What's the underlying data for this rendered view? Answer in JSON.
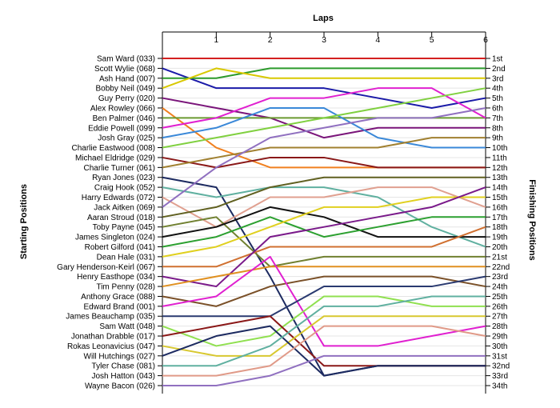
{
  "chart_data": {
    "type": "line",
    "title": "Laps",
    "xlabel": "Laps",
    "ylabel_left": "Starting Positions",
    "ylabel_right": "Finishing Positions",
    "x": [
      0,
      1,
      2,
      3,
      4,
      5,
      6
    ],
    "x_tick_labels": [
      "1",
      "2",
      "3",
      "4",
      "5",
      "6"
    ],
    "ylim": [
      1,
      34
    ],
    "y_inverted": true,
    "grid": "horizontal",
    "finish_labels": [
      "1st",
      "2nd",
      "3rd",
      "4th",
      "5th",
      "6th",
      "7th",
      "8th",
      "9th",
      "10th",
      "11th",
      "12th",
      "13th",
      "14th",
      "15th",
      "16th",
      "17th",
      "18th",
      "19th",
      "20th",
      "21st",
      "22nd",
      "23rd",
      "24th",
      "25th",
      "26th",
      "27th",
      "28th",
      "29th",
      "30th",
      "31st",
      "32nd",
      "33rd",
      "34th"
    ],
    "series": [
      {
        "name": "Sam Ward (033)",
        "color": "#d42020",
        "values": [
          1,
          1,
          1,
          1,
          1,
          1,
          1
        ]
      },
      {
        "name": "Scott Wylie (068)",
        "color": "#1a1aa8",
        "values": [
          2,
          4,
          4,
          4,
          5,
          6,
          5
        ]
      },
      {
        "name": "Ash Hand (007)",
        "color": "#2c9a2c",
        "values": [
          3,
          3,
          2,
          2,
          2,
          2,
          2
        ]
      },
      {
        "name": "Bobby Neil (049)",
        "color": "#d8c800",
        "values": [
          4,
          2,
          3,
          3,
          3,
          3,
          3
        ]
      },
      {
        "name": "Guy Perry (020)",
        "color": "#7a157a",
        "values": [
          5,
          6,
          7,
          9,
          8,
          8,
          8
        ]
      },
      {
        "name": "Alex Rowley (066)",
        "color": "#f08020",
        "values": [
          6,
          10,
          12,
          12,
          12,
          12,
          12
        ]
      },
      {
        "name": "Ben Palmer (046)",
        "color": "#6a9a30",
        "values": [
          7,
          7,
          7,
          7,
          7,
          7,
          7
        ]
      },
      {
        "name": "Eddie Powell (099)",
        "color": "#e020d0",
        "values": [
          8,
          7,
          5,
          5,
          4,
          4,
          7
        ]
      },
      {
        "name": "Josh Gray (025)",
        "color": "#3a88d8",
        "values": [
          9,
          8,
          6,
          6,
          9,
          10,
          10
        ]
      },
      {
        "name": "Charlie Eastwood (008)",
        "color": "#80d040",
        "values": [
          10,
          9,
          8,
          7,
          6,
          5,
          4
        ]
      },
      {
        "name": "Michael Eldridge (029)",
        "color": "#8a1818",
        "values": [
          11,
          12,
          11,
          11,
          12,
          12,
          12
        ]
      },
      {
        "name": "Charlie Turner (061)",
        "color": "#a08030",
        "values": [
          12,
          11,
          10,
          10,
          10,
          9,
          9
        ]
      },
      {
        "name": "Ryan Jones (023)",
        "color": "#1c2a60",
        "values": [
          13,
          14,
          23,
          33,
          32,
          32,
          32
        ]
      },
      {
        "name": "Craig Hook (052)",
        "color": "#60b0a0",
        "values": [
          14,
          15,
          14,
          14,
          15,
          18,
          20
        ]
      },
      {
        "name": "Harry Edwards (072)",
        "color": "#e0a090",
        "values": [
          15,
          18,
          15,
          15,
          14,
          14,
          16
        ]
      },
      {
        "name": "Jack Aitken (069)",
        "color": "#9070c0",
        "values": [
          16,
          12,
          9,
          8,
          7,
          7,
          6
        ]
      },
      {
        "name": "Aaran Stroud (018)",
        "color": "#606020",
        "values": [
          17,
          16,
          14,
          13,
          13,
          13,
          13
        ]
      },
      {
        "name": "Toby Payne (045)",
        "color": "#708030",
        "values": [
          18,
          17,
          22,
          21,
          21,
          21,
          21
        ]
      },
      {
        "name": "James Singleton (024)",
        "color": "#111111",
        "values": [
          19,
          18,
          16,
          17,
          19,
          19,
          19
        ]
      },
      {
        "name": "Robert Gilford (041)",
        "color": "#2ca030",
        "values": [
          20,
          19,
          17,
          19,
          18,
          17,
          17
        ]
      },
      {
        "name": "Dean Hale (031)",
        "color": "#e0d020",
        "values": [
          21,
          20,
          18,
          16,
          16,
          15,
          15
        ]
      },
      {
        "name": "Gary Henderson-Keirl (067)",
        "color": "#d07030",
        "values": [
          22,
          22,
          20,
          20,
          20,
          20,
          18
        ]
      },
      {
        "name": "Henry Easthope (034)",
        "color": "#7a1a8a",
        "values": [
          23,
          24,
          19,
          18,
          17,
          16,
          14
        ]
      },
      {
        "name": "Tim Penny (028)",
        "color": "#e09020",
        "values": [
          24,
          23,
          22,
          22,
          22,
          22,
          22
        ]
      },
      {
        "name": "Anthony Grace (088)",
        "color": "#7a5028",
        "values": [
          25,
          26,
          24,
          23,
          23,
          23,
          24
        ]
      },
      {
        "name": "Edward Brand (001)",
        "color": "#e020d0",
        "values": [
          26,
          25,
          21,
          30,
          30,
          29,
          28
        ]
      },
      {
        "name": "James Beauchamp (035)",
        "color": "#2a3a70",
        "values": [
          27,
          27,
          27,
          24,
          24,
          24,
          23
        ]
      },
      {
        "name": "Sam Watt (048)",
        "color": "#90e050",
        "values": [
          28,
          30,
          29,
          25,
          25,
          26,
          26
        ]
      },
      {
        "name": "Jonathan Drabble (017)",
        "color": "#8a1818",
        "values": [
          29,
          28,
          27,
          32,
          32,
          32,
          32
        ]
      },
      {
        "name": "Rokas Leonavicius (047)",
        "color": "#d8c830",
        "values": [
          30,
          31,
          31,
          27,
          27,
          27,
          27
        ]
      },
      {
        "name": "Will Hutchings (027)",
        "color": "#1c2a60",
        "values": [
          31,
          29,
          28,
          33,
          32,
          32,
          32
        ]
      },
      {
        "name": "Tyler Chase (081)",
        "color": "#60b0a0",
        "values": [
          32,
          32,
          30,
          26,
          26,
          25,
          25
        ]
      },
      {
        "name": "Josh Hatton (043)",
        "color": "#e09a88",
        "values": [
          33,
          33,
          32,
          28,
          28,
          28,
          29
        ]
      },
      {
        "name": "Wayne Bacon (026)",
        "color": "#9070c0",
        "values": [
          34,
          34,
          33,
          31,
          31,
          31,
          31
        ]
      }
    ]
  }
}
